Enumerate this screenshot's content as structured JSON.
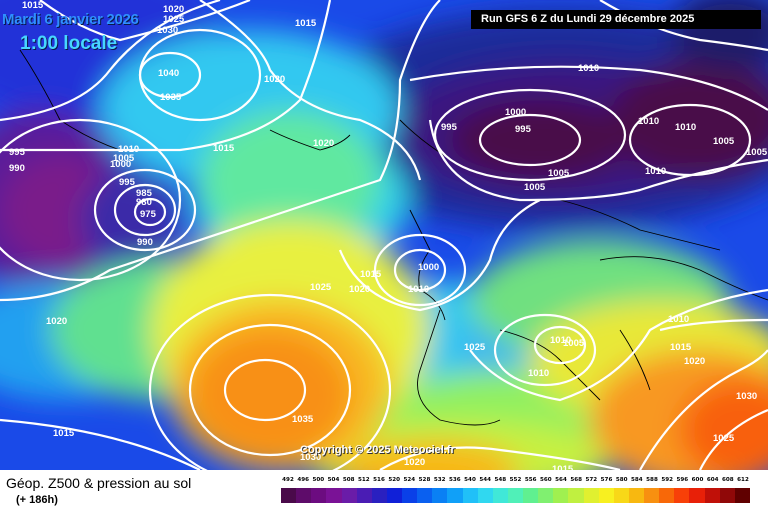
{
  "header": {
    "date": "Mardi 6 janvier 2026",
    "time": "1:00 locale",
    "run": "Run GFS 6 Z du Lundi 29 décembre 2025"
  },
  "copyright": "Copyright © 2025 Meteociel.fr",
  "footer": {
    "title": "Géop. Z500 & pression au sol",
    "subtitle": "(+ 186h)"
  },
  "scale": {
    "ticks": [
      "492",
      "496",
      "500",
      "504",
      "508",
      "512",
      "516",
      "520",
      "524",
      "528",
      "532",
      "536",
      "540",
      "544",
      "548",
      "552",
      "556",
      "560",
      "564",
      "568",
      "572",
      "576",
      "580",
      "584",
      "588",
      "592",
      "596",
      "600",
      "604",
      "608",
      "612"
    ],
    "colors": [
      "#4a0a4a",
      "#5e0c6a",
      "#6c0c80",
      "#7a1296",
      "#6a1ca8",
      "#4a1cb4",
      "#2a20c0",
      "#1020d8",
      "#0a40e8",
      "#0a60f0",
      "#0a80f4",
      "#10a0f8",
      "#20c0f8",
      "#30d8f0",
      "#40e8d8",
      "#50f0b8",
      "#60f090",
      "#80f070",
      "#a0f050",
      "#c0f040",
      "#e0f030",
      "#f8f020",
      "#f8d818",
      "#f8b810",
      "#f89010",
      "#f86808",
      "#f84008",
      "#e82008",
      "#c01008",
      "#900808",
      "#600000"
    ]
  },
  "isobars": [
    {
      "label": "1015"
    },
    {
      "label": "1020"
    },
    {
      "label": "1025"
    },
    {
      "label": "1030"
    },
    {
      "label": "1040"
    },
    {
      "label": "1035"
    },
    {
      "label": "1015"
    },
    {
      "label": "1020"
    },
    {
      "label": "1020"
    },
    {
      "label": "1010"
    },
    {
      "label": "1015"
    },
    {
      "label": "995"
    },
    {
      "label": "990"
    },
    {
      "label": "1005"
    },
    {
      "label": "1000"
    },
    {
      "label": "995"
    },
    {
      "label": "985"
    },
    {
      "label": "980"
    },
    {
      "label": "975"
    },
    {
      "label": "990"
    },
    {
      "label": "1010"
    },
    {
      "label": "1000"
    },
    {
      "label": "995"
    },
    {
      "label": "995"
    },
    {
      "label": "1010"
    },
    {
      "label": "1010"
    },
    {
      "label": "1005"
    },
    {
      "label": "1005"
    },
    {
      "label": "1005"
    },
    {
      "label": "1010"
    },
    {
      "label": "1000"
    },
    {
      "label": "1005"
    },
    {
      "label": "1015"
    },
    {
      "label": "1020"
    },
    {
      "label": "1010"
    },
    {
      "label": "1025"
    },
    {
      "label": "1020"
    },
    {
      "label": "1025"
    },
    {
      "label": "1010"
    },
    {
      "label": "1005"
    },
    {
      "label": "1010"
    },
    {
      "label": "1015"
    },
    {
      "label": "1020"
    },
    {
      "label": "1010"
    },
    {
      "label": "1035"
    },
    {
      "label": "1030"
    },
    {
      "label": "1020"
    },
    {
      "label": "1015"
    },
    {
      "label": "1015"
    },
    {
      "label": "1025"
    },
    {
      "label": "1030"
    }
  ]
}
